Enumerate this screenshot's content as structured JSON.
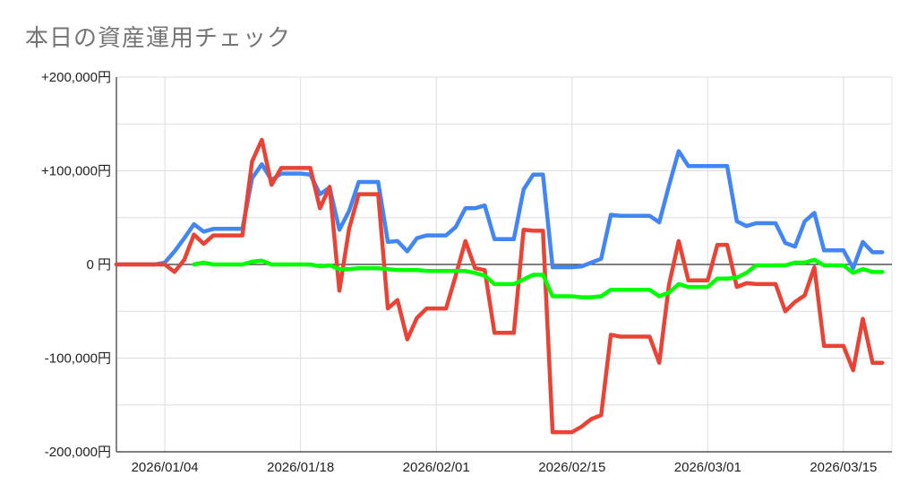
{
  "chart_data": {
    "type": "line",
    "title": "本日の資産運用チェック",
    "xlabel": "",
    "ylabel": "",
    "ylim": [
      -200000,
      200000
    ],
    "y_ticks": [
      {
        "value": 200000,
        "label": "+200,000円"
      },
      {
        "value": 100000,
        "label": "+100,000円"
      },
      {
        "value": 0,
        "label": "0 円"
      },
      {
        "value": -100000,
        "label": "-100,000円"
      },
      {
        "value": -200000,
        "label": "-200,000円"
      }
    ],
    "xlim": [
      "2025-12-30",
      "2026-03-20"
    ],
    "x_ticks": [
      {
        "value": "2026-01-04",
        "label": "2026/01/04"
      },
      {
        "value": "2026-01-18",
        "label": "2026/01/18"
      },
      {
        "value": "2026-02-01",
        "label": "2026/02/01"
      },
      {
        "value": "2026-02-15",
        "label": "2026/02/15"
      },
      {
        "value": "2026-03-01",
        "label": "2026/03/01"
      },
      {
        "value": "2026-03-15",
        "label": "2026/03/15"
      }
    ],
    "grid": true,
    "legend": "none",
    "series": [
      {
        "color": "#4285f4",
        "points": [
          [
            "2025-12-30",
            0
          ],
          [
            "2026-01-02",
            0
          ],
          [
            "2026-01-03",
            0
          ],
          [
            "2026-01-04",
            2000
          ],
          [
            "2026-01-05",
            14000
          ],
          [
            "2026-01-06",
            28000
          ],
          [
            "2026-01-07",
            43000
          ],
          [
            "2026-01-08",
            35000
          ],
          [
            "2026-01-09",
            38000
          ],
          [
            "2026-01-10",
            38000
          ],
          [
            "2026-01-11",
            38000
          ],
          [
            "2026-01-12",
            38000
          ],
          [
            "2026-01-13",
            92000
          ],
          [
            "2026-01-14",
            107000
          ],
          [
            "2026-01-15",
            90000
          ],
          [
            "2026-01-16",
            97000
          ],
          [
            "2026-01-17",
            97000
          ],
          [
            "2026-01-18",
            97000
          ],
          [
            "2026-01-19",
            96000
          ],
          [
            "2026-01-20",
            75000
          ],
          [
            "2026-01-21",
            82000
          ],
          [
            "2026-01-22",
            37000
          ],
          [
            "2026-01-23",
            57000
          ],
          [
            "2026-01-24",
            88000
          ],
          [
            "2026-01-25",
            88000
          ],
          [
            "2026-01-26",
            88000
          ],
          [
            "2026-01-27",
            24000
          ],
          [
            "2026-01-28",
            25000
          ],
          [
            "2026-01-29",
            14000
          ],
          [
            "2026-01-30",
            28000
          ],
          [
            "2026-01-31",
            31000
          ],
          [
            "2026-02-01",
            31000
          ],
          [
            "2026-02-02",
            31000
          ],
          [
            "2026-02-03",
            40000
          ],
          [
            "2026-02-04",
            60000
          ],
          [
            "2026-02-05",
            60000
          ],
          [
            "2026-02-06",
            63000
          ],
          [
            "2026-02-07",
            27000
          ],
          [
            "2026-02-08",
            27000
          ],
          [
            "2026-02-09",
            27000
          ],
          [
            "2026-02-10",
            80000
          ],
          [
            "2026-02-11",
            96000
          ],
          [
            "2026-02-12",
            96000
          ],
          [
            "2026-02-13",
            -3000
          ],
          [
            "2026-02-14",
            -3000
          ],
          [
            "2026-02-15",
            -3000
          ],
          [
            "2026-02-16",
            -2000
          ],
          [
            "2026-02-17",
            2000
          ],
          [
            "2026-02-18",
            6000
          ],
          [
            "2026-02-19",
            53000
          ],
          [
            "2026-02-20",
            52000
          ],
          [
            "2026-02-21",
            52000
          ],
          [
            "2026-02-22",
            52000
          ],
          [
            "2026-02-23",
            52000
          ],
          [
            "2026-02-24",
            45000
          ],
          [
            "2026-02-25",
            84000
          ],
          [
            "2026-02-26",
            121000
          ],
          [
            "2026-02-27",
            105000
          ],
          [
            "2026-02-28",
            105000
          ],
          [
            "2026-03-01",
            105000
          ],
          [
            "2026-03-02",
            105000
          ],
          [
            "2026-03-03",
            105000
          ],
          [
            "2026-03-04",
            46000
          ],
          [
            "2026-03-05",
            41000
          ],
          [
            "2026-03-06",
            44000
          ],
          [
            "2026-03-07",
            44000
          ],
          [
            "2026-03-08",
            44000
          ],
          [
            "2026-03-09",
            23000
          ],
          [
            "2026-03-10",
            19000
          ],
          [
            "2026-03-11",
            46000
          ],
          [
            "2026-03-12",
            55000
          ],
          [
            "2026-03-13",
            15000
          ],
          [
            "2026-03-14",
            15000
          ],
          [
            "2026-03-15",
            15000
          ],
          [
            "2026-03-16",
            -4000
          ],
          [
            "2026-03-17",
            24000
          ],
          [
            "2026-03-18",
            13000
          ],
          [
            "2026-03-19",
            13000
          ]
        ]
      },
      {
        "color": "#ea4335",
        "points": [
          [
            "2025-12-30",
            0
          ],
          [
            "2026-01-02",
            0
          ],
          [
            "2026-01-03",
            0
          ],
          [
            "2026-01-04",
            0
          ],
          [
            "2026-01-05",
            -8000
          ],
          [
            "2026-01-06",
            5000
          ],
          [
            "2026-01-07",
            32000
          ],
          [
            "2026-01-08",
            22000
          ],
          [
            "2026-01-09",
            31000
          ],
          [
            "2026-01-10",
            31000
          ],
          [
            "2026-01-11",
            31000
          ],
          [
            "2026-01-12",
            31000
          ],
          [
            "2026-01-13",
            110000
          ],
          [
            "2026-01-14",
            133000
          ],
          [
            "2026-01-15",
            85000
          ],
          [
            "2026-01-16",
            103000
          ],
          [
            "2026-01-17",
            103000
          ],
          [
            "2026-01-18",
            103000
          ],
          [
            "2026-01-19",
            103000
          ],
          [
            "2026-01-20",
            60000
          ],
          [
            "2026-01-21",
            83000
          ],
          [
            "2026-01-22",
            -28000
          ],
          [
            "2026-01-23",
            38000
          ],
          [
            "2026-01-24",
            75000
          ],
          [
            "2026-01-25",
            75000
          ],
          [
            "2026-01-26",
            75000
          ],
          [
            "2026-01-27",
            -47000
          ],
          [
            "2026-01-28",
            -38000
          ],
          [
            "2026-01-29",
            -80000
          ],
          [
            "2026-01-30",
            -57000
          ],
          [
            "2026-01-31",
            -47000
          ],
          [
            "2026-02-01",
            -47000
          ],
          [
            "2026-02-02",
            -47000
          ],
          [
            "2026-02-03",
            -12000
          ],
          [
            "2026-02-04",
            25000
          ],
          [
            "2026-02-05",
            -4000
          ],
          [
            "2026-02-06",
            -6000
          ],
          [
            "2026-02-07",
            -73000
          ],
          [
            "2026-02-08",
            -73000
          ],
          [
            "2026-02-09",
            -73000
          ],
          [
            "2026-02-10",
            37000
          ],
          [
            "2026-02-11",
            36000
          ],
          [
            "2026-02-12",
            36000
          ],
          [
            "2026-02-13",
            -179000
          ],
          [
            "2026-02-14",
            -179000
          ],
          [
            "2026-02-15",
            -179000
          ],
          [
            "2026-02-16",
            -173000
          ],
          [
            "2026-02-17",
            -165000
          ],
          [
            "2026-02-18",
            -161000
          ],
          [
            "2026-02-19",
            -75000
          ],
          [
            "2026-02-20",
            -77000
          ],
          [
            "2026-02-21",
            -77000
          ],
          [
            "2026-02-22",
            -77000
          ],
          [
            "2026-02-23",
            -77000
          ],
          [
            "2026-02-24",
            -105000
          ],
          [
            "2026-02-25",
            -22000
          ],
          [
            "2026-02-26",
            25000
          ],
          [
            "2026-02-27",
            -17000
          ],
          [
            "2026-02-28",
            -17000
          ],
          [
            "2026-03-01",
            -17000
          ],
          [
            "2026-03-02",
            21000
          ],
          [
            "2026-03-03",
            21000
          ],
          [
            "2026-03-04",
            -24000
          ],
          [
            "2026-03-05",
            -20000
          ],
          [
            "2026-03-06",
            -21000
          ],
          [
            "2026-03-07",
            -21000
          ],
          [
            "2026-03-08",
            -21000
          ],
          [
            "2026-03-09",
            -50000
          ],
          [
            "2026-03-10",
            -40000
          ],
          [
            "2026-03-11",
            -33000
          ],
          [
            "2026-03-12",
            -3000
          ],
          [
            "2026-03-13",
            -87000
          ],
          [
            "2026-03-14",
            -87000
          ],
          [
            "2026-03-15",
            -87000
          ],
          [
            "2026-03-16",
            -113000
          ],
          [
            "2026-03-17",
            -58000
          ],
          [
            "2026-03-18",
            -105000
          ],
          [
            "2026-03-19",
            -105000
          ]
        ]
      },
      {
        "color": "#00ff00",
        "points": [
          [
            "2026-01-07",
            0
          ],
          [
            "2026-01-08",
            2000
          ],
          [
            "2026-01-09",
            0
          ],
          [
            "2026-01-10",
            0
          ],
          [
            "2026-01-11",
            0
          ],
          [
            "2026-01-12",
            0
          ],
          [
            "2026-01-13",
            3000
          ],
          [
            "2026-01-14",
            4000
          ],
          [
            "2026-01-15",
            0
          ],
          [
            "2026-01-16",
            0
          ],
          [
            "2026-01-17",
            0
          ],
          [
            "2026-01-18",
            0
          ],
          [
            "2026-01-19",
            0
          ],
          [
            "2026-01-20",
            -2000
          ],
          [
            "2026-01-21",
            -1000
          ],
          [
            "2026-01-22",
            -5000
          ],
          [
            "2026-01-23",
            -5000
          ],
          [
            "2026-01-24",
            -4000
          ],
          [
            "2026-01-25",
            -4000
          ],
          [
            "2026-01-26",
            -4000
          ],
          [
            "2026-01-27",
            -5000
          ],
          [
            "2026-01-28",
            -6000
          ],
          [
            "2026-01-29",
            -6000
          ],
          [
            "2026-01-30",
            -6000
          ],
          [
            "2026-01-31",
            -7000
          ],
          [
            "2026-02-01",
            -7000
          ],
          [
            "2026-02-02",
            -7000
          ],
          [
            "2026-02-03",
            -7000
          ],
          [
            "2026-02-04",
            -7000
          ],
          [
            "2026-02-05",
            -9000
          ],
          [
            "2026-02-06",
            -12000
          ],
          [
            "2026-02-07",
            -21000
          ],
          [
            "2026-02-08",
            -21000
          ],
          [
            "2026-02-09",
            -21000
          ],
          [
            "2026-02-10",
            -16000
          ],
          [
            "2026-02-11",
            -11000
          ],
          [
            "2026-02-12",
            -11000
          ],
          [
            "2026-02-13",
            -34000
          ],
          [
            "2026-02-14",
            -34000
          ],
          [
            "2026-02-15",
            -34000
          ],
          [
            "2026-02-16",
            -35000
          ],
          [
            "2026-02-17",
            -35000
          ],
          [
            "2026-02-18",
            -34000
          ],
          [
            "2026-02-19",
            -27000
          ],
          [
            "2026-02-20",
            -27000
          ],
          [
            "2026-02-21",
            -27000
          ],
          [
            "2026-02-22",
            -27000
          ],
          [
            "2026-02-23",
            -27000
          ],
          [
            "2026-02-24",
            -34000
          ],
          [
            "2026-02-25",
            -30000
          ],
          [
            "2026-02-26",
            -21000
          ],
          [
            "2026-02-27",
            -24000
          ],
          [
            "2026-02-28",
            -24000
          ],
          [
            "2026-03-01",
            -24000
          ],
          [
            "2026-03-02",
            -15000
          ],
          [
            "2026-03-03",
            -15000
          ],
          [
            "2026-03-04",
            -14000
          ],
          [
            "2026-03-05",
            -9000
          ],
          [
            "2026-03-06",
            -1000
          ],
          [
            "2026-03-07",
            -1000
          ],
          [
            "2026-03-08",
            -1000
          ],
          [
            "2026-03-09",
            -1000
          ],
          [
            "2026-03-10",
            2000
          ],
          [
            "2026-03-11",
            2000
          ],
          [
            "2026-03-12",
            5000
          ],
          [
            "2026-03-13",
            -1000
          ],
          [
            "2026-03-14",
            -1000
          ],
          [
            "2026-03-15",
            -1000
          ],
          [
            "2026-03-16",
            -9000
          ],
          [
            "2026-03-17",
            -5000
          ],
          [
            "2026-03-18",
            -8000
          ],
          [
            "2026-03-19",
            -8000
          ]
        ]
      }
    ]
  }
}
